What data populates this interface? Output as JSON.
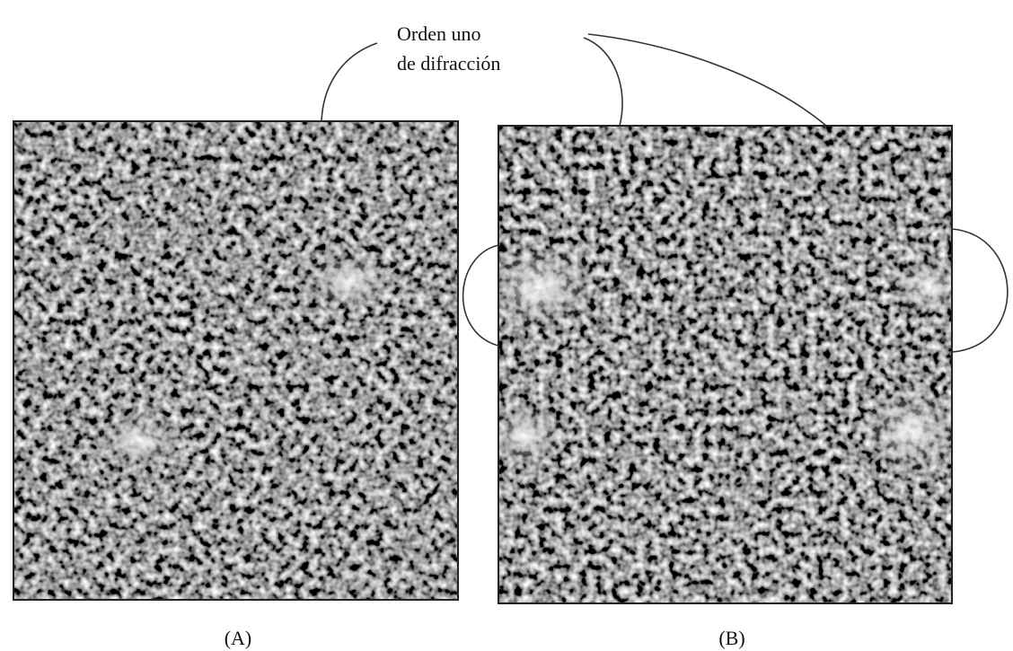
{
  "annotation": {
    "lines": [
      "Orden uno",
      "de difracción"
    ]
  },
  "panels": [
    {
      "label": "(A)"
    },
    {
      "label": "(B)"
    }
  ]
}
